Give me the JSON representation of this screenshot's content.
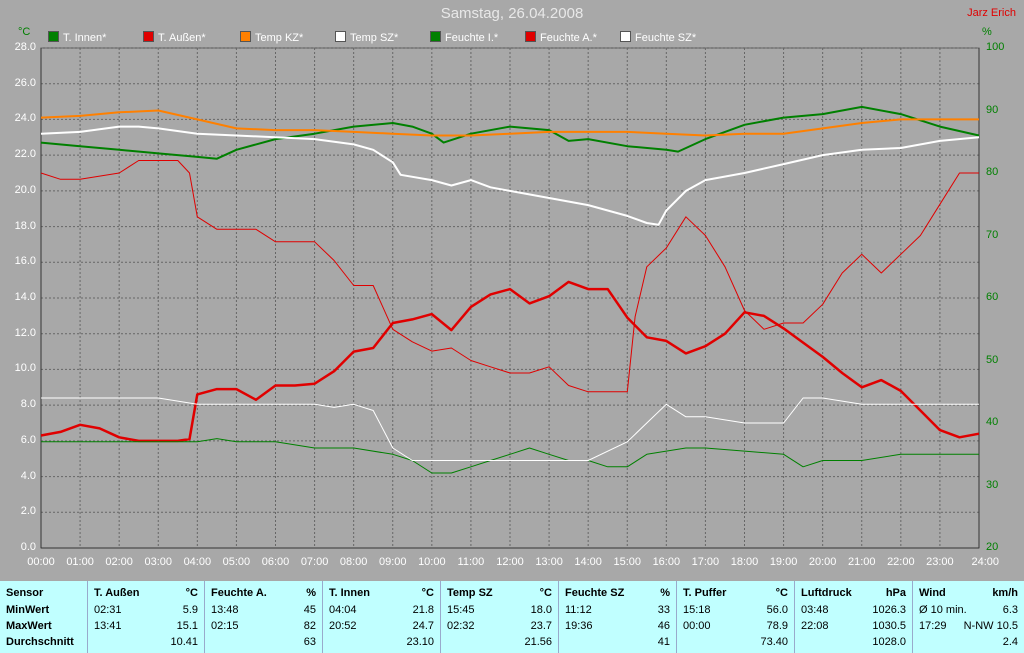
{
  "title": "Samstag, 26.04.2008",
  "author": "Jarz Erich",
  "unit_left": "°C",
  "unit_right": "%",
  "legend": [
    {
      "label": "T. Innen*",
      "color": "#008000"
    },
    {
      "label": "T. Außen*",
      "color": "#e00000"
    },
    {
      "label": "Temp KZ*",
      "color": "#ff8000"
    },
    {
      "label": "Temp SZ*",
      "color": "#ffffff"
    },
    {
      "label": "Feuchte I.*",
      "color": "#008000"
    },
    {
      "label": "Feuchte A.*",
      "color": "#e00000"
    },
    {
      "label": "Feuchte SZ*",
      "color": "#ffffff"
    }
  ],
  "chart_data": {
    "type": "line",
    "title": "Samstag, 26.04.2008",
    "x_ticks": [
      "00:00",
      "01:00",
      "02:00",
      "03:00",
      "04:00",
      "05:00",
      "06:00",
      "07:00",
      "08:00",
      "09:00",
      "10:00",
      "11:00",
      "12:00",
      "13:00",
      "14:00",
      "15:00",
      "16:00",
      "17:00",
      "18:00",
      "19:00",
      "20:00",
      "21:00",
      "22:00",
      "23:00",
      "24:00"
    ],
    "xlim": [
      0,
      24
    ],
    "ylim_left": [
      0,
      28
    ],
    "y_ticks_left": [
      "0.0",
      "2.0",
      "4.0",
      "6.0",
      "8.0",
      "10.0",
      "12.0",
      "14.0",
      "16.0",
      "18.0",
      "20.0",
      "22.0",
      "24.0",
      "26.0",
      "28.0"
    ],
    "ylim_right": [
      20,
      100
    ],
    "y_ticks_right": [
      "20",
      "30",
      "40",
      "50",
      "60",
      "70",
      "80",
      "90",
      "100"
    ],
    "grid": true,
    "series": [
      {
        "name": "T. Innen*",
        "axis": "left",
        "color": "#008000",
        "width": 2,
        "x": [
          0,
          1,
          2,
          3,
          4,
          4.5,
          5,
          6,
          7,
          8,
          9,
          9.5,
          10,
          10.3,
          11,
          12,
          13,
          13.5,
          14,
          15,
          16,
          16.3,
          17,
          18,
          19,
          20,
          20.5,
          21,
          22,
          23,
          24
        ],
        "y": [
          22.7,
          22.5,
          22.3,
          22.1,
          21.9,
          21.8,
          22.3,
          22.9,
          23.2,
          23.6,
          23.8,
          23.6,
          23.2,
          22.7,
          23.2,
          23.6,
          23.4,
          22.8,
          22.9,
          22.5,
          22.3,
          22.2,
          22.9,
          23.7,
          24.1,
          24.3,
          24.5,
          24.7,
          24.3,
          23.6,
          23.1
        ]
      },
      {
        "name": "T. Außen*",
        "axis": "left",
        "color": "#e00000",
        "width": 2.5,
        "x": [
          0,
          0.5,
          1,
          1.5,
          2,
          2.5,
          3,
          3.5,
          3.8,
          4,
          4.5,
          5,
          5.5,
          6,
          6.5,
          7,
          7.5,
          8,
          8.5,
          9,
          9.5,
          10,
          10.5,
          11,
          11.5,
          12,
          12.5,
          13,
          13.5,
          14,
          14.5,
          15,
          15.5,
          16,
          16.5,
          17,
          17.5,
          18,
          18.5,
          19,
          19.5,
          20,
          20.5,
          21,
          21.5,
          22,
          22.5,
          23,
          23.5,
          24
        ],
        "y": [
          6.3,
          6.5,
          6.9,
          6.7,
          6.2,
          6.0,
          6.0,
          6.0,
          6.1,
          8.6,
          8.9,
          8.9,
          8.3,
          9.1,
          9.1,
          9.2,
          9.9,
          11.0,
          11.2,
          12.6,
          12.8,
          13.1,
          12.2,
          13.5,
          14.2,
          14.5,
          13.7,
          14.1,
          14.9,
          14.5,
          14.5,
          12.9,
          11.8,
          11.6,
          10.9,
          11.3,
          12.0,
          13.2,
          13.0,
          12.3,
          11.5,
          10.7,
          9.8,
          9.0,
          9.4,
          8.8,
          7.7,
          6.6,
          6.2,
          6.4
        ]
      },
      {
        "name": "Temp KZ*",
        "axis": "left",
        "color": "#ff8000",
        "width": 2,
        "x": [
          0,
          1,
          2,
          3,
          4,
          5,
          6,
          7,
          8,
          9,
          10,
          11,
          12,
          13,
          14,
          15,
          16,
          17,
          18,
          19,
          20,
          21,
          22,
          23,
          24
        ],
        "y": [
          24.1,
          24.2,
          24.4,
          24.5,
          24.0,
          23.5,
          23.4,
          23.4,
          23.3,
          23.2,
          23.1,
          23.1,
          23.2,
          23.3,
          23.3,
          23.3,
          23.2,
          23.1,
          23.2,
          23.2,
          23.5,
          23.8,
          24.0,
          24.0,
          24.0
        ]
      },
      {
        "name": "Temp SZ*",
        "axis": "left",
        "color": "#ffffff",
        "width": 2,
        "x": [
          0,
          1,
          2,
          2.5,
          3,
          4,
          5,
          6,
          7,
          8,
          8.5,
          9,
          9.2,
          10,
          10.5,
          11,
          11.5,
          12,
          13,
          14,
          15,
          15.5,
          15.8,
          16,
          16.5,
          17,
          18,
          19,
          20,
          21,
          22,
          23,
          24
        ],
        "y": [
          23.2,
          23.3,
          23.6,
          23.6,
          23.5,
          23.2,
          23.1,
          23.0,
          22.9,
          22.6,
          22.3,
          21.6,
          20.9,
          20.6,
          20.3,
          20.6,
          20.2,
          20.0,
          19.6,
          19.2,
          18.6,
          18.2,
          18.1,
          18.9,
          20.0,
          20.6,
          21.0,
          21.5,
          22.0,
          22.3,
          22.4,
          22.8,
          23.0
        ]
      },
      {
        "name": "Feuchte I.*",
        "axis": "right",
        "color": "#008000",
        "width": 1,
        "x": [
          0,
          1,
          2,
          3,
          4,
          4.5,
          5,
          6,
          7,
          8,
          9,
          9.5,
          10,
          10.5,
          11,
          11.5,
          12,
          12.5,
          13,
          13.5,
          14,
          14.5,
          15,
          15.5,
          16,
          16.5,
          17,
          18,
          19,
          19.5,
          20,
          21,
          22,
          23,
          24
        ],
        "y": [
          37,
          37,
          37,
          37,
          37,
          37.5,
          37,
          37,
          36,
          36,
          35,
          34,
          32,
          32,
          33,
          34,
          35,
          36,
          35,
          34,
          34,
          33,
          33,
          35,
          35.5,
          36,
          36,
          35.5,
          35,
          33,
          34,
          34,
          35,
          35,
          35
        ]
      },
      {
        "name": "Feuchte A.*",
        "axis": "right",
        "color": "#e00000",
        "width": 1,
        "x": [
          0,
          0.5,
          1,
          2,
          2.5,
          3,
          3.5,
          3.8,
          4,
          4.5,
          5,
          5.5,
          6,
          6.5,
          7,
          7.5,
          8,
          8.5,
          9,
          9.5,
          10,
          10.5,
          11,
          11.5,
          12,
          12.5,
          13,
          13.5,
          14,
          14.5,
          15,
          15.2,
          15.5,
          16,
          16.5,
          17,
          17.5,
          18,
          18.5,
          19,
          19.5,
          20,
          20.5,
          21,
          21.5,
          22,
          22.5,
          23,
          23.5,
          24
        ],
        "y": [
          80,
          79,
          79,
          80,
          82,
          82,
          82,
          80,
          73,
          71,
          71,
          71,
          69,
          69,
          69,
          66,
          62,
          62,
          55,
          53,
          51.5,
          52,
          50,
          49,
          48,
          48,
          49,
          46,
          45,
          45,
          45,
          57,
          65,
          68,
          73,
          70,
          65,
          58,
          55,
          56,
          56,
          59,
          64,
          67,
          64,
          67,
          70,
          75,
          80,
          80
        ]
      },
      {
        "name": "Feuchte SZ*",
        "axis": "right",
        "color": "#ffffff",
        "width": 1,
        "x": [
          0,
          1,
          2,
          3,
          4,
          5,
          6,
          7,
          7.5,
          8,
          8.5,
          9,
          9.5,
          10,
          11,
          12,
          13,
          14,
          15,
          15.5,
          16,
          16.5,
          17,
          18,
          19,
          19.5,
          20,
          21,
          22,
          23,
          24
        ],
        "y": [
          44,
          44,
          44,
          44,
          43,
          43,
          43,
          43,
          42.5,
          43,
          42,
          36,
          34,
          34,
          34,
          34,
          34,
          34,
          37,
          40,
          43,
          41,
          41,
          40,
          40,
          44,
          44,
          43,
          43,
          43,
          43
        ]
      }
    ]
  },
  "table": {
    "sensor_header": "Sensor",
    "row_labels": [
      "MinWert",
      "MaxWert",
      "Durchschnitt"
    ],
    "columns": [
      {
        "name": "T. Außen",
        "unit": "°C",
        "rows": [
          [
            "02:31",
            "5.9"
          ],
          [
            "13:41",
            "15.1"
          ],
          [
            "",
            "10.41"
          ]
        ]
      },
      {
        "name": "Feuchte A.",
        "unit": "%",
        "rows": [
          [
            "13:48",
            "45"
          ],
          [
            "02:15",
            "82"
          ],
          [
            "",
            "63"
          ]
        ]
      },
      {
        "name": "T. Innen",
        "unit": "°C",
        "rows": [
          [
            "04:04",
            "21.8"
          ],
          [
            "20:52",
            "24.7"
          ],
          [
            "",
            "23.10"
          ]
        ]
      },
      {
        "name": "Temp SZ",
        "unit": "°C",
        "rows": [
          [
            "15:45",
            "18.0"
          ],
          [
            "02:32",
            "23.7"
          ],
          [
            "",
            "21.56"
          ]
        ]
      },
      {
        "name": "Feuchte SZ",
        "unit": "%",
        "rows": [
          [
            "11:12",
            "33"
          ],
          [
            "19:36",
            "46"
          ],
          [
            "",
            "41"
          ]
        ]
      },
      {
        "name": "T. Puffer",
        "unit": "°C",
        "rows": [
          [
            "15:18",
            "56.0"
          ],
          [
            "00:00",
            "78.9"
          ],
          [
            "",
            "73.40"
          ]
        ]
      },
      {
        "name": "Luftdruck",
        "unit": "hPa",
        "rows": [
          [
            "03:48",
            "1026.3"
          ],
          [
            "22:08",
            "1030.5"
          ],
          [
            "",
            "1028.0"
          ]
        ]
      },
      {
        "name": "Wind",
        "unit": "km/h",
        "rows": [
          [
            "Ø 10 min.",
            "6.3"
          ],
          [
            "17:29",
            "N-NW 10.5"
          ],
          [
            "",
            "2.4"
          ]
        ]
      }
    ]
  }
}
